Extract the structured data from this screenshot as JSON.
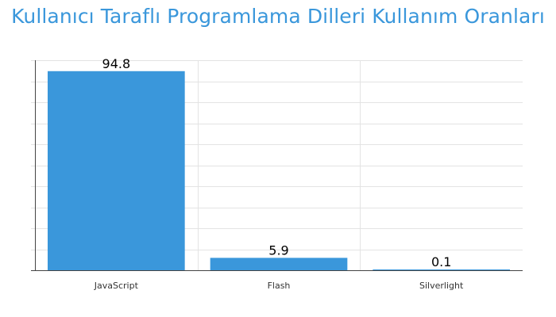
{
  "chart_data": {
    "type": "bar",
    "title": "Kullanıcı Taraflı Programlama Dilleri Kullanım Oranları",
    "categories": [
      "JavaScript",
      "Flash",
      "Silverlight"
    ],
    "values": [
      94.8,
      5.9,
      0.1
    ],
    "data_labels": [
      "94.8",
      "5.9",
      "0.1"
    ],
    "xlabel": "",
    "ylabel": "",
    "ylim": [
      0,
      100
    ],
    "grid": true,
    "legend": "none",
    "colors": {
      "bar": "#3a97db",
      "title": "#3a97db",
      "grid": "#e3e3e3",
      "axis": "#444444",
      "label": "#000000",
      "tick_label": "#333333"
    }
  }
}
